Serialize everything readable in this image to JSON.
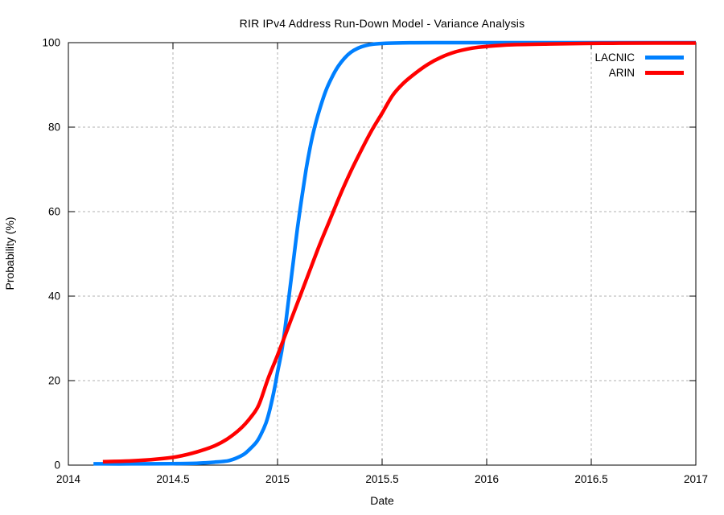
{
  "chart_data": {
    "type": "line",
    "title": "RIR IPv4 Address Run-Down Model - Variance Analysis",
    "xlabel": "Date",
    "ylabel": "Probability (%)",
    "xlim": [
      2014,
      2017
    ],
    "ylim": [
      0,
      100
    ],
    "xticks": [
      2014,
      2014.5,
      2015,
      2015.5,
      2016,
      2016.5,
      2017
    ],
    "xtick_labels": [
      "2014",
      "2014.5",
      "2015",
      "2015.5",
      "2016",
      "2016.5",
      "2017"
    ],
    "yticks": [
      0,
      20,
      40,
      60,
      80,
      100
    ],
    "ytick_labels": [
      "0",
      "20",
      "40",
      "60",
      "80",
      "100"
    ],
    "grid": true,
    "grid_style": "dashed",
    "legend_position": "top-right-inside",
    "series": [
      {
        "name": "LACNIC",
        "color": "#0080ff",
        "width": 4.5,
        "points": [
          [
            2014.12,
            0.3
          ],
          [
            2014.3,
            0.3
          ],
          [
            2014.5,
            0.35
          ],
          [
            2014.62,
            0.45
          ],
          [
            2014.7,
            0.7
          ],
          [
            2014.76,
            1.0
          ],
          [
            2014.8,
            1.6
          ],
          [
            2014.84,
            2.6
          ],
          [
            2014.87,
            3.9
          ],
          [
            2014.9,
            5.5
          ],
          [
            2014.92,
            7.2
          ],
          [
            2014.945,
            10
          ],
          [
            2014.965,
            13.5
          ],
          [
            2014.985,
            18
          ],
          [
            2015.0,
            22
          ],
          [
            2015.02,
            27
          ],
          [
            2015.035,
            32
          ],
          [
            2015.05,
            38
          ],
          [
            2015.065,
            44
          ],
          [
            2015.08,
            50
          ],
          [
            2015.095,
            56
          ],
          [
            2015.115,
            63
          ],
          [
            2015.135,
            69.5
          ],
          [
            2015.155,
            75
          ],
          [
            2015.175,
            79.5
          ],
          [
            2015.2,
            84
          ],
          [
            2015.23,
            88.5
          ],
          [
            2015.26,
            91.8
          ],
          [
            2015.29,
            94.4
          ],
          [
            2015.32,
            96.3
          ],
          [
            2015.35,
            97.7
          ],
          [
            2015.385,
            98.7
          ],
          [
            2015.42,
            99.3
          ],
          [
            2015.46,
            99.65
          ],
          [
            2015.52,
            99.85
          ],
          [
            2015.6,
            99.95
          ],
          [
            2015.75,
            100
          ],
          [
            2016.0,
            100
          ],
          [
            2016.5,
            100
          ],
          [
            2017.0,
            100
          ]
        ]
      },
      {
        "name": "ARIN",
        "color": "#ff0000",
        "width": 4.5,
        "points": [
          [
            2014.165,
            0.8
          ],
          [
            2014.3,
            1.0
          ],
          [
            2014.42,
            1.4
          ],
          [
            2014.52,
            2.0
          ],
          [
            2014.62,
            3.2
          ],
          [
            2014.7,
            4.6
          ],
          [
            2014.76,
            6.2
          ],
          [
            2014.82,
            8.5
          ],
          [
            2014.87,
            11.2
          ],
          [
            2014.91,
            14.2
          ],
          [
            2014.955,
            20.5
          ],
          [
            2015.0,
            26
          ],
          [
            2015.05,
            32.5
          ],
          [
            2015.1,
            39
          ],
          [
            2015.15,
            45.5
          ],
          [
            2015.2,
            52
          ],
          [
            2015.25,
            58
          ],
          [
            2015.3,
            64
          ],
          [
            2015.35,
            69.5
          ],
          [
            2015.4,
            74.5
          ],
          [
            2015.45,
            79.2
          ],
          [
            2015.5,
            83.3
          ],
          [
            2015.55,
            87.5
          ],
          [
            2015.6,
            90.3
          ],
          [
            2015.66,
            92.8
          ],
          [
            2015.72,
            94.9
          ],
          [
            2015.78,
            96.5
          ],
          [
            2015.85,
            97.8
          ],
          [
            2015.93,
            98.7
          ],
          [
            2016.0,
            99.1
          ],
          [
            2016.12,
            99.5
          ],
          [
            2016.3,
            99.7
          ],
          [
            2016.55,
            99.85
          ],
          [
            2016.8,
            99.9
          ],
          [
            2017.0,
            99.9
          ]
        ]
      }
    ]
  },
  "colors": {
    "background": "#ffffff",
    "border": "#000000",
    "grid": "#b0b0b0",
    "text": "#000000"
  }
}
